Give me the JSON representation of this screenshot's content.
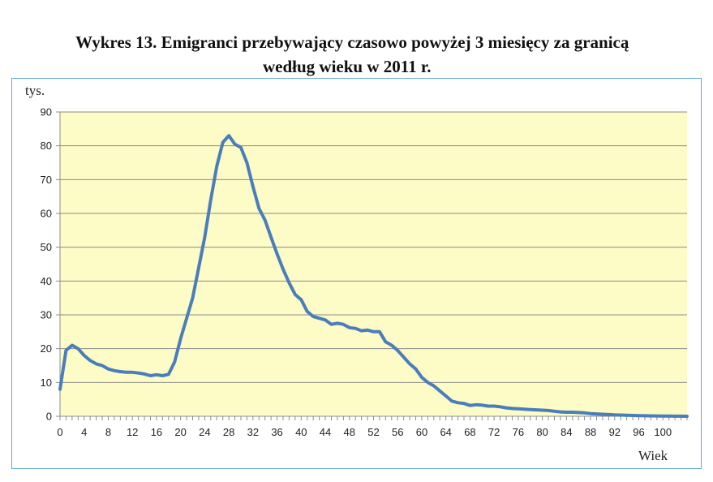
{
  "title": {
    "line1": "Wykres 13. Emigranci przebywający czasowo powyżej 3 miesięcy za granicą",
    "line2": "według wieku w 2011 r."
  },
  "chart_data": {
    "type": "line",
    "ylabel": "tys.",
    "xlabel": "Wiek",
    "ylim": [
      0,
      90
    ],
    "yticks": [
      0,
      10,
      20,
      30,
      40,
      50,
      60,
      70,
      80,
      90
    ],
    "xlim": [
      0,
      104
    ],
    "xticks": [
      0,
      4,
      8,
      12,
      16,
      20,
      24,
      28,
      32,
      36,
      40,
      44,
      48,
      52,
      56,
      60,
      64,
      68,
      72,
      76,
      80,
      84,
      88,
      92,
      96,
      100
    ],
    "grid": "horizontal",
    "plot_background": "#fdfbc6",
    "line_color": "#4a7ebb",
    "series": [
      {
        "x": [
          0,
          1,
          2,
          3,
          4,
          5,
          6,
          7,
          8,
          9,
          10,
          11,
          12,
          13,
          14,
          15,
          16,
          17,
          18,
          19,
          20,
          21,
          22,
          23,
          24,
          25,
          26,
          27,
          28,
          29,
          30,
          31,
          32,
          33,
          34,
          35,
          36,
          37,
          38,
          39,
          40,
          41,
          42,
          43,
          44,
          45,
          46,
          47,
          48,
          49,
          50,
          51,
          52,
          53,
          54,
          55,
          56,
          57,
          58,
          59,
          60,
          61,
          62,
          63,
          64,
          65,
          66,
          67,
          68,
          69,
          70,
          71,
          72,
          73,
          74,
          75,
          76,
          77,
          78,
          79,
          80,
          81,
          82,
          83,
          84,
          85,
          86,
          87,
          88,
          89,
          90,
          91,
          92,
          93,
          94,
          95,
          96,
          97,
          98,
          99,
          100,
          101,
          102,
          103,
          104
        ],
        "y": [
          8,
          19.5,
          21,
          20,
          18,
          16.5,
          15.5,
          15,
          14,
          13.5,
          13.2,
          13,
          13,
          12.8,
          12.5,
          12,
          12.3,
          12,
          12.4,
          16,
          23,
          29,
          35,
          44,
          53,
          64,
          74,
          81,
          83,
          80.5,
          79.5,
          75,
          68,
          61.5,
          58,
          53,
          48,
          43.5,
          39.5,
          36,
          34.5,
          31,
          29.5,
          29,
          28.5,
          27.2,
          27.5,
          27.2,
          26.2,
          26,
          25.3,
          25.5,
          25,
          25,
          22,
          21,
          19.5,
          17.5,
          15.5,
          14,
          11.5,
          10,
          9,
          7.5,
          6,
          4.5,
          4,
          3.8,
          3.2,
          3.4,
          3.3,
          3,
          3,
          2.8,
          2.5,
          2.3,
          2.2,
          2.1,
          2,
          1.9,
          1.8,
          1.7,
          1.5,
          1.3,
          1.2,
          1.2,
          1.1,
          1,
          0.8,
          0.7,
          0.6,
          0.5,
          0.4,
          0.35,
          0.3,
          0.25,
          0.2,
          0.15,
          0.12,
          0.1,
          0.08,
          0.05,
          0.03,
          0.02,
          0.01
        ]
      }
    ]
  }
}
